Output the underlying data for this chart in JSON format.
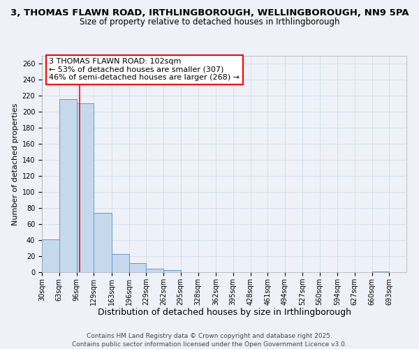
{
  "title_line1": "3, THOMAS FLAWN ROAD, IRTHLINGBOROUGH, WELLINGBOROUGH, NN9 5PA",
  "title_line2": "Size of property relative to detached houses in Irthlingborough",
  "xlabel": "Distribution of detached houses by size in Irthlingborough",
  "ylabel": "Number of detached properties",
  "bin_labels": [
    "30sqm",
    "63sqm",
    "96sqm",
    "129sqm",
    "163sqm",
    "196sqm",
    "229sqm",
    "262sqm",
    "295sqm",
    "328sqm",
    "362sqm",
    "395sqm",
    "428sqm",
    "461sqm",
    "494sqm",
    "527sqm",
    "560sqm",
    "594sqm",
    "627sqm",
    "660sqm",
    "693sqm"
  ],
  "bin_edges": [
    30,
    63,
    96,
    129,
    163,
    196,
    229,
    262,
    295,
    328,
    362,
    395,
    428,
    461,
    494,
    527,
    560,
    594,
    627,
    660,
    693,
    726
  ],
  "bar_heights": [
    41,
    216,
    211,
    74,
    23,
    11,
    4,
    3,
    0,
    0,
    0,
    0,
    0,
    0,
    0,
    0,
    0,
    0,
    0,
    1,
    0
  ],
  "bar_color": "#c6d9ec",
  "bar_edge_color": "#5b9bd5",
  "vline_x": 102,
  "vline_color": "red",
  "annotation_box_text": "3 THOMAS FLAWN ROAD: 102sqm\n← 53% of detached houses are smaller (307)\n46% of semi-detached houses are larger (268) →",
  "ylim": [
    0,
    270
  ],
  "yticks": [
    0,
    20,
    40,
    60,
    80,
    100,
    120,
    140,
    160,
    180,
    200,
    220,
    240,
    260
  ],
  "grid_color": "#c8d8e8",
  "background_color": "#eef2f8",
  "footer_text": "Contains HM Land Registry data © Crown copyright and database right 2025.\nContains public sector information licensed under the Open Government Licence v3.0.",
  "title_fontsize": 9.5,
  "subtitle_fontsize": 8.5,
  "xlabel_fontsize": 9,
  "ylabel_fontsize": 8,
  "tick_fontsize": 7,
  "annotation_fontsize": 8,
  "footer_fontsize": 6.5
}
